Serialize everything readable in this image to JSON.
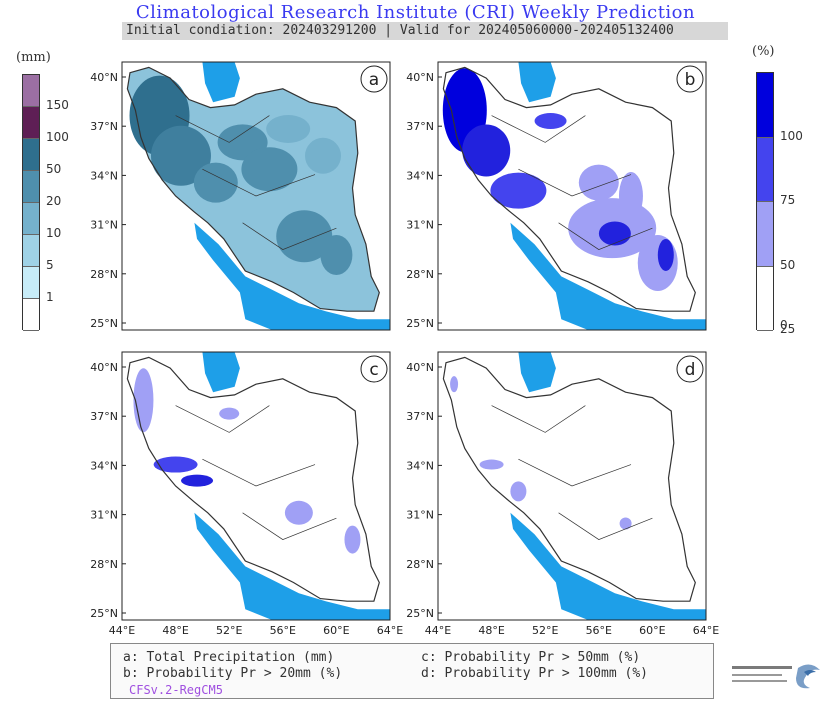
{
  "header": {
    "title": "Climatological Research Institute (CRI) Weekly Prediction",
    "subtitle": "Initial condiation: 202403291200 | Valid for 202405060000-202405132400"
  },
  "colorbar_left": {
    "unit": "(mm)",
    "ticks": [
      "150",
      "100",
      "50",
      "20",
      "10",
      "5",
      "1"
    ],
    "colors": [
      "#9b6fa3",
      "#5e1f55",
      "#2f6f8e",
      "#4f8fad",
      "#75b1cc",
      "#9fd2e6",
      "#c7ecf8",
      "#ffffff"
    ]
  },
  "colorbar_right": {
    "unit": "(%)",
    "ticks": [
      "100",
      "75",
      "50",
      "25",
      "0"
    ],
    "colors": [
      "#0000dd",
      "#4444ee",
      "#a0a0f5",
      "#ffffff"
    ]
  },
  "panels": [
    {
      "label": "a"
    },
    {
      "label": "b"
    },
    {
      "label": "c"
    },
    {
      "label": "d"
    }
  ],
  "axes": {
    "lat_ticks": [
      "40°N",
      "37°N",
      "34°N",
      "31°N",
      "28°N",
      "25°N"
    ],
    "lon_ticks": [
      "44°E",
      "48°E",
      "52°E",
      "56°E",
      "60°E",
      "64°E"
    ]
  },
  "legend": {
    "a": "a: Total Precipitation (mm)",
    "b": "b: Probability Pr > 20mm (%)",
    "c": "c: Probability Pr > 50mm (%)",
    "d": "d: Probability Pr > 100mm (%)",
    "model": "CFSv.2-RegCM5"
  },
  "logo": {
    "icon": "institute-logo-icon"
  }
}
